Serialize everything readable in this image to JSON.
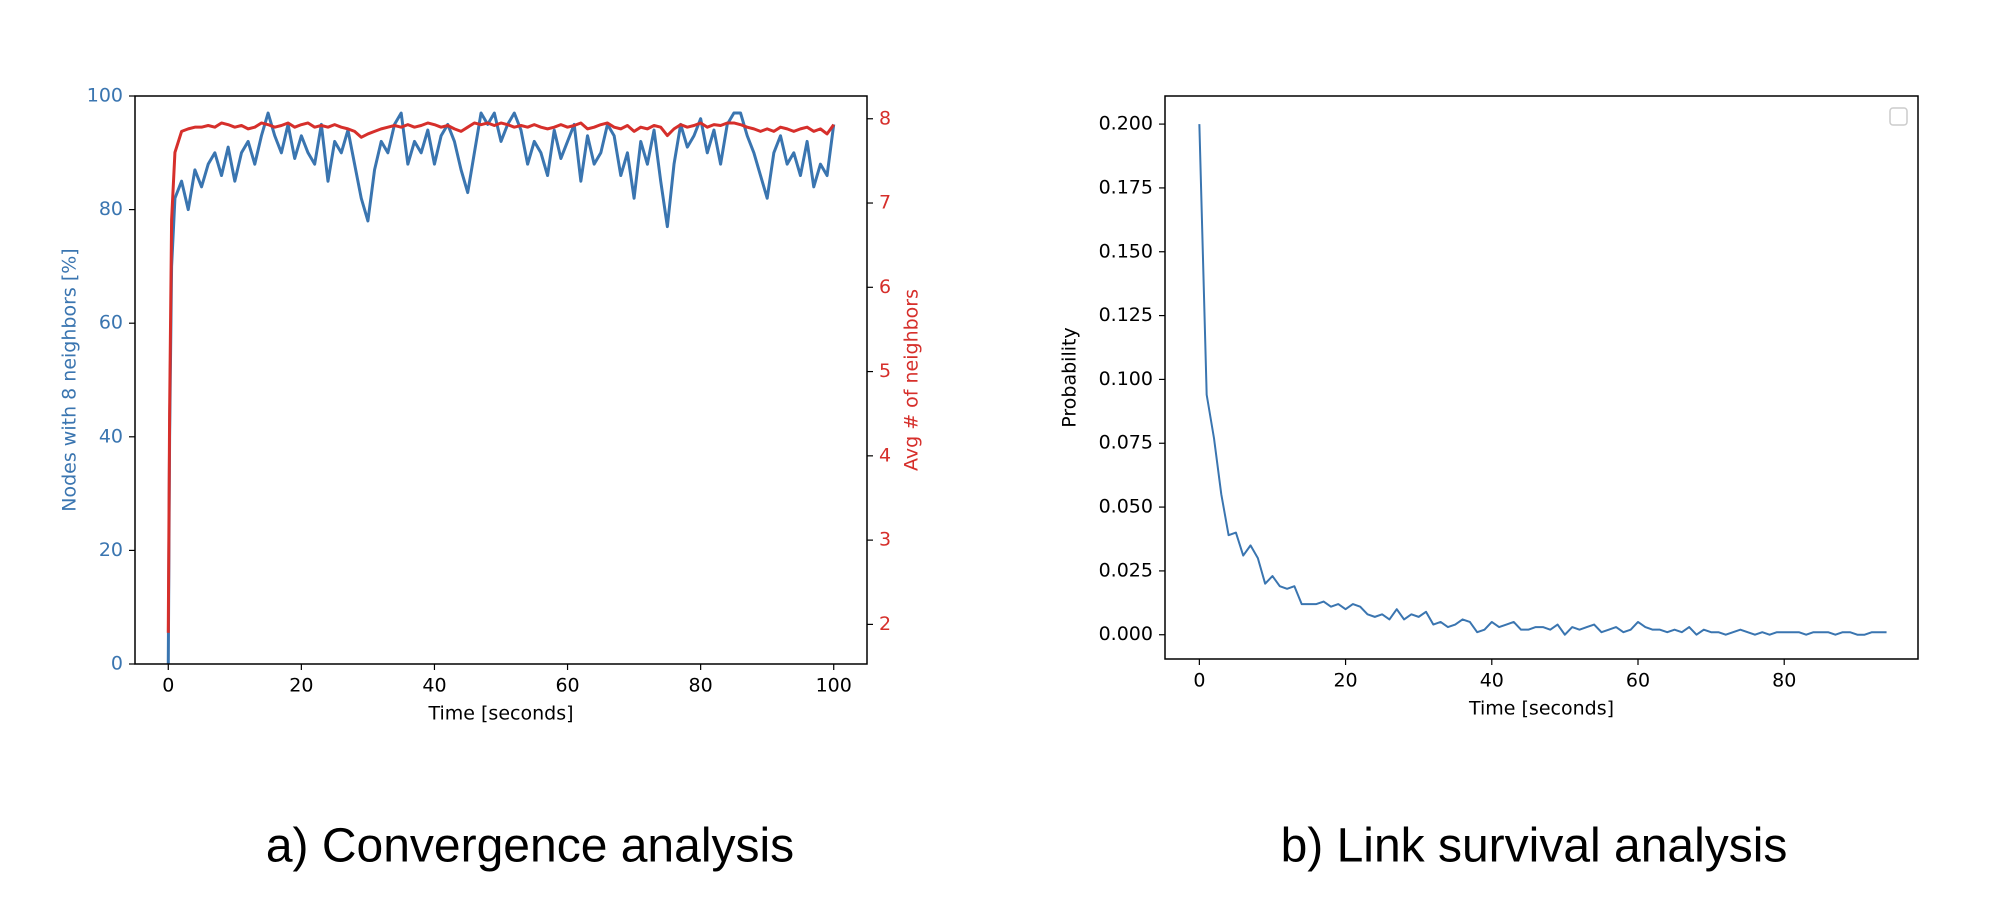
{
  "chart_data": [
    {
      "type": "line",
      "caption": "a)   Convergence analysis",
      "x_label": "Time [seconds]",
      "y_label": "Nodes with 8 neighbors [%]",
      "y2_label": "Avg # of neighbors",
      "x": [
        0,
        0.2,
        0.5,
        1,
        2,
        3,
        4,
        5,
        6,
        7,
        8,
        9,
        10,
        11,
        12,
        13,
        14,
        15,
        16,
        17,
        18,
        19,
        20,
        21,
        22,
        23,
        24,
        25,
        26,
        27,
        28,
        29,
        30,
        31,
        32,
        33,
        34,
        35,
        36,
        37,
        38,
        39,
        40,
        41,
        42,
        43,
        44,
        45,
        46,
        47,
        48,
        49,
        50,
        51,
        52,
        53,
        54,
        55,
        56,
        57,
        58,
        59,
        60,
        61,
        62,
        63,
        64,
        65,
        66,
        67,
        68,
        69,
        70,
        71,
        72,
        73,
        74,
        75,
        76,
        77,
        78,
        79,
        80,
        81,
        82,
        83,
        84,
        85,
        86,
        87,
        88,
        89,
        90,
        91,
        92,
        93,
        94,
        95,
        96,
        97,
        98,
        99,
        100
      ],
      "series": [
        {
          "name": "Nodes with 8 neighbors",
          "color": "#3a75b0",
          "axis": "y",
          "values": [
            0,
            40,
            70,
            82,
            85,
            80,
            87,
            84,
            88,
            90,
            86,
            91,
            85,
            90,
            92,
            88,
            93,
            97,
            93,
            90,
            95,
            89,
            93,
            90,
            88,
            95,
            85,
            92,
            90,
            94,
            88,
            82,
            78,
            87,
            92,
            90,
            95,
            97,
            88,
            92,
            90,
            94,
            88,
            93,
            95,
            92,
            87,
            83,
            90,
            97,
            95,
            97,
            92,
            95,
            97,
            94,
            88,
            92,
            90,
            86,
            94,
            89,
            92,
            95,
            85,
            93,
            88,
            90,
            95,
            93,
            86,
            90,
            82,
            92,
            88,
            94,
            85,
            77,
            88,
            95,
            91,
            93,
            96,
            90,
            94,
            88,
            95,
            97,
            97,
            93,
            90,
            86,
            82,
            90,
            93,
            88,
            90,
            86,
            92,
            84,
            88,
            86,
            95
          ]
        },
        {
          "name": "Avg # of neighbors",
          "color": "#d62f2b",
          "axis": "y2",
          "values": [
            1.9,
            4.5,
            6.8,
            7.6,
            7.85,
            7.88,
            7.9,
            7.9,
            7.92,
            7.9,
            7.95,
            7.93,
            7.9,
            7.92,
            7.88,
            7.9,
            7.95,
            7.93,
            7.9,
            7.92,
            7.95,
            7.9,
            7.93,
            7.95,
            7.9,
            7.92,
            7.9,
            7.93,
            7.9,
            7.88,
            7.85,
            7.78,
            7.82,
            7.85,
            7.88,
            7.9,
            7.92,
            7.9,
            7.93,
            7.9,
            7.92,
            7.95,
            7.93,
            7.9,
            7.92,
            7.88,
            7.85,
            7.9,
            7.95,
            7.93,
            7.95,
            7.92,
            7.95,
            7.93,
            7.9,
            7.92,
            7.9,
            7.93,
            7.9,
            7.88,
            7.9,
            7.93,
            7.9,
            7.92,
            7.95,
            7.88,
            7.9,
            7.93,
            7.95,
            7.9,
            7.88,
            7.92,
            7.85,
            7.9,
            7.88,
            7.92,
            7.9,
            7.8,
            7.88,
            7.93,
            7.9,
            7.92,
            7.95,
            7.9,
            7.93,
            7.92,
            7.95,
            7.95,
            7.93,
            7.9,
            7.88,
            7.85,
            7.88,
            7.85,
            7.9,
            7.88,
            7.85,
            7.88,
            7.9,
            7.85,
            7.88,
            7.82,
            7.93
          ]
        }
      ],
      "xlim": [
        -5,
        105
      ],
      "xticks": [
        0,
        20,
        40,
        60,
        80,
        100
      ],
      "ylim": [
        0,
        100
      ],
      "yticks": [
        0,
        20,
        40,
        60,
        80,
        100
      ],
      "y2lim": [
        1.53,
        8.27
      ],
      "y2ticks": [
        2,
        3,
        4,
        5,
        6,
        7,
        8
      ]
    },
    {
      "type": "line",
      "caption": "b)   Link survival analysis",
      "x_label": "Time [seconds]",
      "y_label": "Probability",
      "x": [
        0,
        1,
        2,
        3,
        4,
        5,
        6,
        7,
        8,
        9,
        10,
        11,
        12,
        13,
        14,
        15,
        16,
        17,
        18,
        19,
        20,
        21,
        22,
        23,
        24,
        25,
        26,
        27,
        28,
        29,
        30,
        31,
        32,
        33,
        34,
        35,
        36,
        37,
        38,
        39,
        40,
        41,
        42,
        43,
        44,
        45,
        46,
        47,
        48,
        49,
        50,
        51,
        52,
        53,
        54,
        55,
        56,
        57,
        58,
        59,
        60,
        61,
        62,
        63,
        64,
        65,
        66,
        67,
        68,
        69,
        70,
        71,
        72,
        73,
        74,
        75,
        76,
        77,
        78,
        79,
        80,
        81,
        82,
        83,
        84,
        85,
        86,
        87,
        88,
        89,
        90,
        91,
        92,
        93,
        94
      ],
      "series": [
        {
          "color": "#3a75b0",
          "axis": "y",
          "values": [
            0.2,
            0.094,
            0.077,
            0.055,
            0.039,
            0.04,
            0.031,
            0.035,
            0.03,
            0.02,
            0.023,
            0.019,
            0.018,
            0.019,
            0.012,
            0.012,
            0.012,
            0.013,
            0.011,
            0.012,
            0.01,
            0.012,
            0.011,
            0.008,
            0.007,
            0.008,
            0.006,
            0.01,
            0.006,
            0.008,
            0.007,
            0.009,
            0.004,
            0.005,
            0.003,
            0.004,
            0.006,
            0.005,
            0.001,
            0.002,
            0.005,
            0.003,
            0.004,
            0.005,
            0.002,
            0.002,
            0.003,
            0.003,
            0.002,
            0.004,
            0.0,
            0.003,
            0.002,
            0.003,
            0.004,
            0.001,
            0.002,
            0.003,
            0.001,
            0.002,
            0.005,
            0.003,
            0.002,
            0.002,
            0.001,
            0.002,
            0.001,
            0.003,
            0.0,
            0.002,
            0.001,
            0.001,
            0.0,
            0.001,
            0.002,
            0.001,
            0.0,
            0.001,
            0.0,
            0.001,
            0.001,
            0.001,
            0.001,
            0.0,
            0.001,
            0.001,
            0.001,
            0.0,
            0.001,
            0.001,
            0.0,
            0.0,
            0.001,
            0.001,
            0.001
          ]
        }
      ],
      "xlim": [
        -4.7,
        98.3
      ],
      "xticks": [
        0,
        20,
        40,
        60,
        80
      ],
      "ylim": [
        -0.0095,
        0.211
      ],
      "yticks": [
        {
          "value": 0,
          "label": "0.000"
        },
        {
          "value": 0.025,
          "label": "0.025"
        },
        {
          "value": 0.05,
          "label": "0.050"
        },
        {
          "value": 0.075,
          "label": "0.075"
        },
        {
          "value": 0.1,
          "label": "0.100"
        },
        {
          "value": 0.125,
          "label": "0.125"
        },
        {
          "value": 0.15,
          "label": "0.150"
        },
        {
          "value": 0.175,
          "label": "0.175"
        },
        {
          "value": 0.2,
          "label": "0.200"
        }
      ],
      "legend": "upper right"
    }
  ]
}
